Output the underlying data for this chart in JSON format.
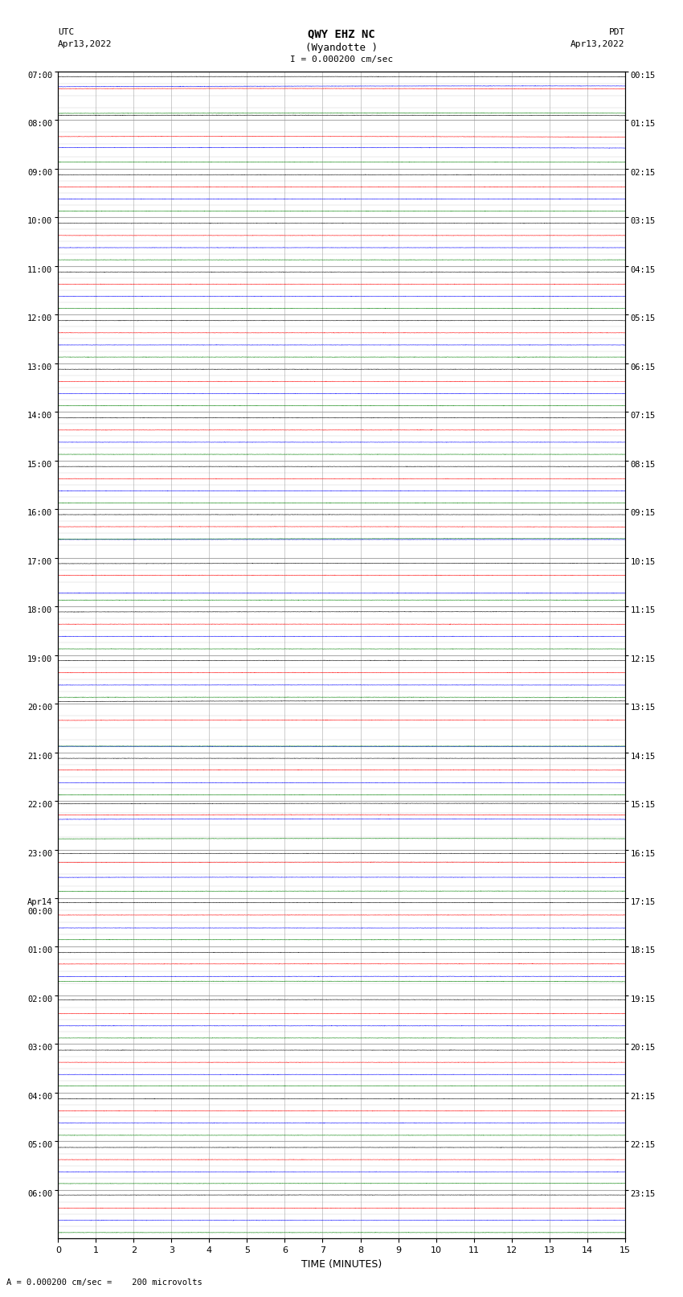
{
  "title_line1": "QWY EHZ NC",
  "title_line2": "(Wyandotte )",
  "scale_label": "I = 0.000200 cm/sec",
  "utc_label": "UTC",
  "pdt_label": "PDT",
  "date_left": "Apr13,2022",
  "date_right": "Apr13,2022",
  "xlabel": "TIME (MINUTES)",
  "bottom_label": "A = 0.000200 cm/sec =    200 microvolts",
  "bg_color": "#ffffff",
  "grid_color": "#999999",
  "trace_colors": [
    "black",
    "red",
    "blue",
    "green"
  ],
  "figsize": [
    8.5,
    16.13
  ],
  "dpi": 100,
  "hour_labels_left": [
    "07:00",
    "08:00",
    "09:00",
    "10:00",
    "11:00",
    "12:00",
    "13:00",
    "14:00",
    "15:00",
    "16:00",
    "17:00",
    "18:00",
    "19:00",
    "20:00",
    "21:00",
    "22:00",
    "23:00",
    "Apr14\n00:00",
    "01:00",
    "02:00",
    "03:00",
    "04:00",
    "05:00",
    "06:00"
  ],
  "hour_labels_right": [
    "00:15",
    "01:15",
    "02:15",
    "03:15",
    "04:15",
    "05:15",
    "06:15",
    "07:15",
    "08:15",
    "09:15",
    "10:15",
    "11:15",
    "12:15",
    "13:15",
    "14:15",
    "15:15",
    "16:15",
    "17:15",
    "18:15",
    "19:15",
    "20:15",
    "21:15",
    "22:15",
    "23:15"
  ],
  "num_hours": 24,
  "traces_per_hour": 4
}
